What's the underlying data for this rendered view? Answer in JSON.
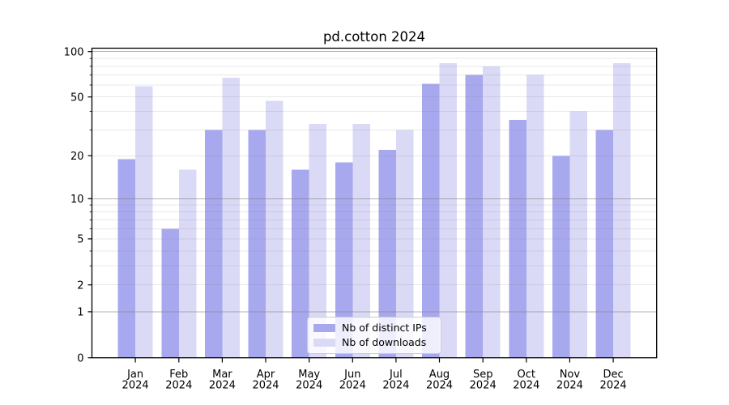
{
  "chart_data": {
    "type": "bar",
    "title": "pd.cotton 2024",
    "categories": [
      "Jan 2024",
      "Feb 2024",
      "Mar 2024",
      "Apr 2024",
      "May 2024",
      "Jun 2024",
      "Jul 2024",
      "Aug 2024",
      "Sep 2024",
      "Oct 2024",
      "Nov 2024",
      "Dec 2024"
    ],
    "series": [
      {
        "name": "Nb of distinct IPs",
        "color": "#a8a8ef",
        "values": [
          19,
          6,
          30,
          30,
          16,
          18,
          22,
          61,
          70,
          35,
          20,
          30
        ]
      },
      {
        "name": "Nb of downloads",
        "color": "#dadaf7",
        "values": [
          59,
          16,
          67,
          47,
          33,
          33,
          30,
          84,
          80,
          70,
          40,
          84
        ]
      }
    ],
    "yscale": "log1p",
    "ylim": [
      0,
      105.3
    ],
    "yticks": [
      0,
      1,
      2,
      5,
      10,
      20,
      50,
      100
    ],
    "grid": {
      "on": true,
      "drawn_over_bars": true,
      "major_values": [
        1,
        10,
        100
      ],
      "minor_values": [
        2,
        3,
        4,
        5,
        6,
        7,
        8,
        9,
        20,
        30,
        40,
        50,
        60,
        70,
        80,
        90
      ],
      "major_color": "#808080",
      "major_opacity": 0.6,
      "minor_color": "#808080",
      "minor_opacity": 0.18
    },
    "legend_position": "lower-center",
    "axis_color": "#000000",
    "background_color": "#ffffff",
    "bar_group_width": 0.8,
    "tick_font_px": 13,
    "title_font_px": 16.5
  }
}
